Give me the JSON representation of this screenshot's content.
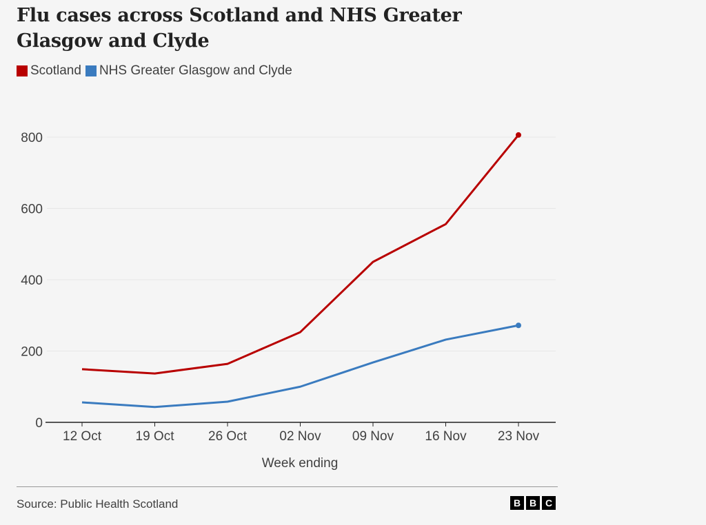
{
  "chart_data": {
    "type": "line",
    "title": "Flu cases across Scotland and NHS Greater Glasgow and Clyde",
    "xlabel": "Week ending",
    "ylabel": "",
    "categories": [
      "12 Oct",
      "19 Oct",
      "26 Oct",
      "02 Nov",
      "09 Nov",
      "16 Nov",
      "23 Nov"
    ],
    "yticks": [
      0,
      200,
      400,
      600,
      800
    ],
    "ylim": [
      0,
      800
    ],
    "grid": true,
    "legend_position": "top-left",
    "series": [
      {
        "name": "Scotland",
        "color": "#b80000",
        "values": [
          149,
          137,
          164,
          253,
          450,
          556,
          806
        ]
      },
      {
        "name": "NHS Greater Glasgow and Clyde",
        "color": "#3a7bbf",
        "values": [
          56,
          43,
          58,
          100,
          168,
          232,
          272
        ]
      }
    ]
  },
  "footer": {
    "source": "Source: Public Health Scotland",
    "logo_letters": [
      "B",
      "B",
      "C"
    ]
  }
}
